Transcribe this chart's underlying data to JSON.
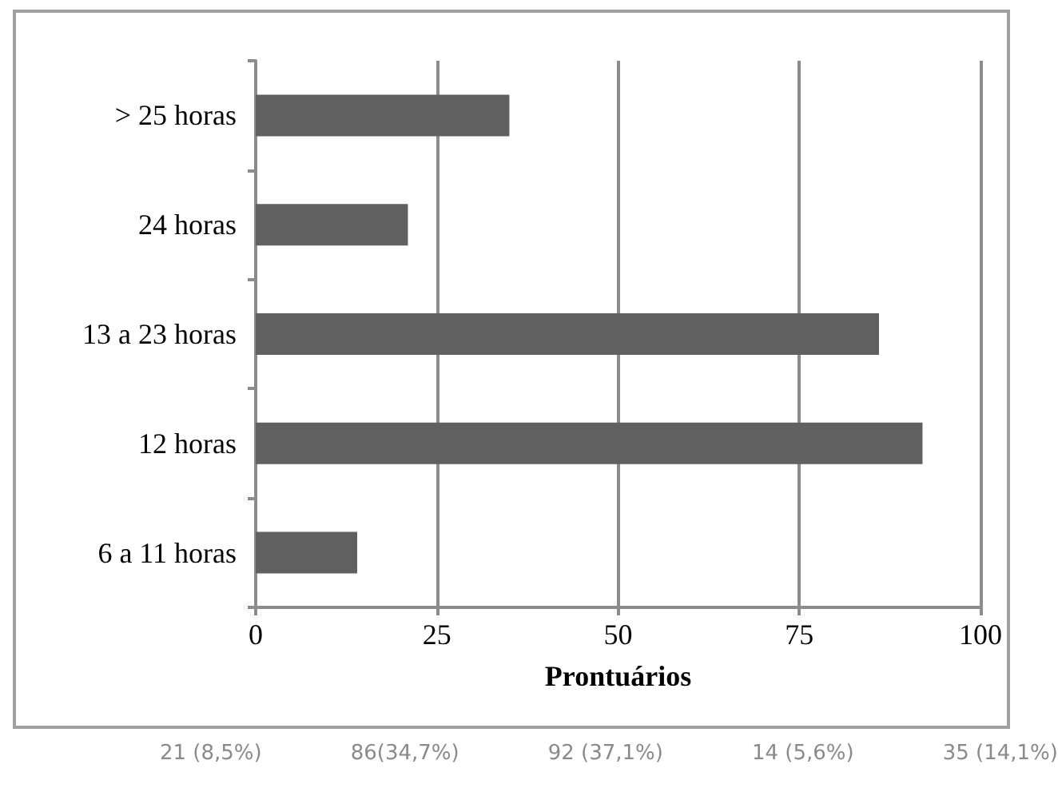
{
  "chart_data": {
    "type": "bar",
    "orientation": "horizontal",
    "xlabel": "Prontuários",
    "categories": [
      "> 25 horas",
      "24 horas",
      "13 a 23 horas",
      "12 horas",
      "6 a 11 horas"
    ],
    "values": [
      35,
      21,
      86,
      92,
      14
    ],
    "color": "#606060",
    "xlim": [
      0,
      100
    ],
    "xticks": [
      0,
      25,
      50,
      75,
      100
    ],
    "grid": "x",
    "annotations": [
      "21 (8,5%)",
      "86(34,7%)",
      "92 (37,1%)",
      "14 (5,6%)",
      "35 (14,1%)"
    ]
  }
}
